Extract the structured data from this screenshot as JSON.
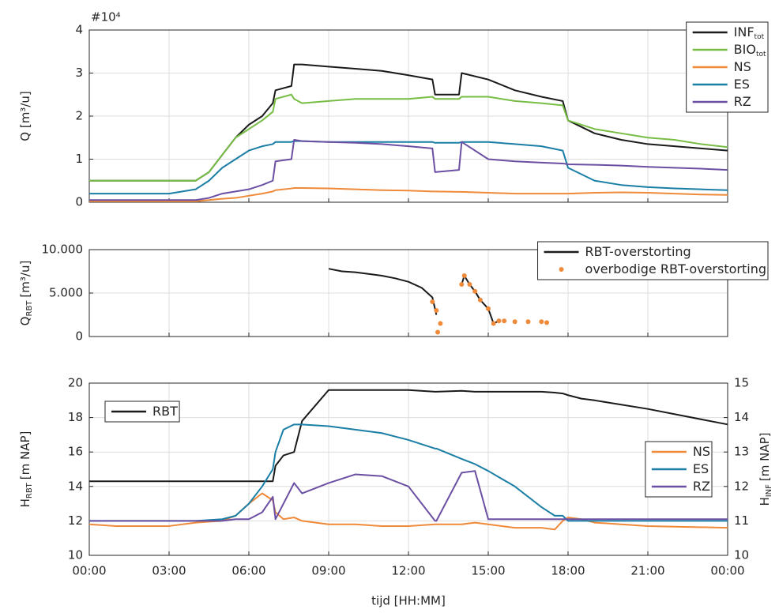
{
  "chart_data": [
    {
      "type": "line",
      "ylabel": "Q [m³/u]",
      "exponent_label": "#10⁴",
      "grid": true,
      "legend": "upper right",
      "xlim": [
        0,
        24
      ],
      "xticks": [
        0,
        3,
        6,
        9,
        12,
        15,
        18,
        21,
        24
      ],
      "ylim": [
        0,
        4
      ],
      "yticks": [
        0,
        1,
        2,
        3,
        4
      ],
      "x": [
        0,
        1,
        2,
        3,
        4,
        4.5,
        5,
        5.5,
        6,
        6.5,
        6.9,
        7,
        7.6,
        7.7,
        8,
        9,
        10,
        11,
        12,
        12.9,
        13,
        13.9,
        14,
        15,
        16,
        17,
        17.8,
        18,
        19,
        20,
        21,
        22,
        23,
        24
      ],
      "series": [
        {
          "name": "INF",
          "subscript": "tot",
          "color": "#1a1a1a",
          "values": [
            0.5,
            0.5,
            0.5,
            0.5,
            0.5,
            0.7,
            1.1,
            1.5,
            1.8,
            2.0,
            2.3,
            2.6,
            2.7,
            3.2,
            3.2,
            3.15,
            3.1,
            3.05,
            2.95,
            2.85,
            2.5,
            2.5,
            3.0,
            2.85,
            2.6,
            2.45,
            2.35,
            1.9,
            1.6,
            1.45,
            1.35,
            1.3,
            1.25,
            1.2
          ]
        },
        {
          "name": "BIO",
          "subscript": "tot",
          "color": "#77bd45",
          "values": [
            0.5,
            0.5,
            0.5,
            0.5,
            0.5,
            0.7,
            1.1,
            1.5,
            1.7,
            1.9,
            2.1,
            2.4,
            2.5,
            2.4,
            2.3,
            2.35,
            2.4,
            2.4,
            2.4,
            2.45,
            2.4,
            2.4,
            2.45,
            2.45,
            2.35,
            2.3,
            2.25,
            1.9,
            1.7,
            1.6,
            1.5,
            1.45,
            1.35,
            1.28
          ]
        },
        {
          "name": "NS",
          "color": "#ee8a3a",
          "values": [
            0.02,
            0.02,
            0.02,
            0.02,
            0.02,
            0.05,
            0.08,
            0.1,
            0.15,
            0.2,
            0.25,
            0.28,
            0.32,
            0.33,
            0.33,
            0.32,
            0.3,
            0.28,
            0.27,
            0.25,
            0.25,
            0.24,
            0.24,
            0.22,
            0.2,
            0.2,
            0.2,
            0.2,
            0.22,
            0.23,
            0.22,
            0.2,
            0.18,
            0.17
          ]
        },
        {
          "name": "ES",
          "color": "#1b7ea6",
          "values": [
            0.2,
            0.2,
            0.2,
            0.2,
            0.3,
            0.5,
            0.8,
            1.0,
            1.2,
            1.3,
            1.35,
            1.4,
            1.4,
            1.42,
            1.42,
            1.4,
            1.4,
            1.4,
            1.4,
            1.4,
            1.38,
            1.38,
            1.4,
            1.4,
            1.35,
            1.3,
            1.2,
            0.8,
            0.5,
            0.4,
            0.35,
            0.32,
            0.3,
            0.28
          ]
        },
        {
          "name": "RZ",
          "color": "#6a4fa3",
          "values": [
            0.05,
            0.05,
            0.05,
            0.05,
            0.05,
            0.1,
            0.2,
            0.25,
            0.3,
            0.4,
            0.5,
            0.95,
            1.0,
            1.45,
            1.42,
            1.4,
            1.38,
            1.35,
            1.3,
            1.25,
            0.7,
            0.75,
            1.4,
            1.0,
            0.95,
            0.92,
            0.9,
            0.88,
            0.87,
            0.85,
            0.82,
            0.8,
            0.78,
            0.75
          ]
        }
      ]
    },
    {
      "type": "line",
      "ylabel": "Q",
      "ylabel_subscript": "RBT",
      "ylabel_unit": "[m³/u]",
      "grid": true,
      "legend": "upper right",
      "xlim": [
        0,
        24
      ],
      "xticks": [
        0,
        3,
        6,
        9,
        12,
        15,
        18,
        21,
        24
      ],
      "ylim": [
        0,
        10000
      ],
      "yticks": [
        0,
        {
          "value": 5000,
          "label": "5.000"
        },
        {
          "value": 10000,
          "label": "10.000"
        }
      ],
      "x": [
        9,
        9.5,
        10,
        10.5,
        11,
        11.5,
        12,
        12.5,
        12.9,
        13.05,
        13.1,
        13.2,
        14,
        14.1,
        14.3,
        14.5,
        14.7,
        15,
        15.2,
        15.4,
        15.6,
        16,
        16.5,
        17,
        17.2
      ],
      "series": [
        {
          "name": "RBT-overstorting",
          "type": "line",
          "color": "#1a1a1a",
          "values": [
            7800,
            7500,
            7400,
            7200,
            7000,
            6700,
            6300,
            5600,
            4500,
            2500,
            null,
            null,
            6000,
            7000,
            6000,
            5200,
            4200,
            3200,
            1500,
            1800,
            null,
            null,
            null,
            null,
            null
          ]
        },
        {
          "name": "overbodige RBT-overstorting",
          "type": "scatter",
          "color": "#ee8a3a",
          "values": [
            null,
            null,
            null,
            null,
            null,
            null,
            null,
            null,
            4000,
            3000,
            500,
            1500,
            6000,
            7000,
            6000,
            5200,
            4200,
            3200,
            1500,
            1800,
            1800,
            1700,
            1700,
            1700,
            1600
          ]
        }
      ]
    },
    {
      "type": "line",
      "ylabel": "H",
      "ylabel_subscript": "RBT",
      "ylabel_unit": "[m NAP]",
      "y2label": "H",
      "y2label_subscript": "INF",
      "y2label_unit": "[m NAP]",
      "xlabel": "tijd [HH:MM]",
      "grid": true,
      "legend": "upper left",
      "y2legend": "center right",
      "xlim": [
        0,
        24
      ],
      "xticks": [
        {
          "value": 0,
          "label": "00:00"
        },
        {
          "value": 3,
          "label": "03:00"
        },
        {
          "value": 6,
          "label": "06:00"
        },
        {
          "value": 9,
          "label": "09:00"
        },
        {
          "value": 12,
          "label": "12:00"
        },
        {
          "value": 15,
          "label": "15:00"
        },
        {
          "value": 18,
          "label": "18:00"
        },
        {
          "value": 21,
          "label": "21:00"
        },
        {
          "value": 24,
          "label": "00:00"
        }
      ],
      "ylim": [
        10,
        20
      ],
      "yticks": [
        10,
        12,
        14,
        16,
        18,
        20
      ],
      "y2lim": [
        10,
        15
      ],
      "y2ticks": [
        10,
        11,
        12,
        13,
        14,
        15
      ],
      "x": [
        0,
        1,
        2,
        3,
        4,
        5,
        5.5,
        6,
        6.5,
        6.9,
        7,
        7.3,
        7.7,
        8,
        9,
        10,
        11,
        12,
        13,
        13.05,
        14,
        14.5,
        15,
        16,
        17,
        17.5,
        17.8,
        18,
        18.5,
        19,
        21,
        24
      ],
      "series": [
        {
          "name": "RBT",
          "color": "#1a1a1a",
          "values": [
            14.3,
            14.3,
            14.3,
            14.3,
            14.3,
            14.3,
            14.3,
            14.3,
            14.3,
            14.3,
            15.2,
            15.8,
            16.0,
            17.8,
            19.6,
            19.6,
            19.6,
            19.6,
            19.5,
            19.5,
            19.55,
            19.5,
            19.5,
            19.5,
            19.5,
            19.45,
            19.4,
            19.3,
            19.1,
            19.0,
            18.5,
            17.6
          ]
        },
        {
          "name": "NS",
          "color": "#ee8a3a",
          "axis": "y2",
          "values": [
            10.9,
            10.85,
            10.85,
            10.85,
            10.95,
            11,
            11.15,
            11.5,
            11.8,
            11.6,
            11.25,
            11.05,
            11.1,
            11,
            10.9,
            10.9,
            10.85,
            10.85,
            10.9,
            10.9,
            10.9,
            10.95,
            10.9,
            10.8,
            10.8,
            10.75,
            11,
            11.1,
            11.05,
            10.95,
            10.85,
            10.8
          ]
        },
        {
          "name": "ES",
          "color": "#1b7ea6",
          "axis": "y2",
          "values": [
            11,
            11,
            11,
            11,
            11,
            11.05,
            11.15,
            11.5,
            12,
            12.5,
            13,
            13.65,
            13.8,
            13.8,
            13.75,
            13.65,
            13.55,
            13.35,
            13.1,
            13.1,
            12.8,
            12.65,
            12.45,
            12,
            11.4,
            11.15,
            11.15,
            11,
            11,
            11,
            11,
            11
          ]
        },
        {
          "name": "RZ",
          "color": "#6a4fa3",
          "axis": "y2",
          "values": [
            11,
            11,
            11,
            11,
            11,
            11,
            11.05,
            11.05,
            11.25,
            11.7,
            11.05,
            11.5,
            12.1,
            11.8,
            12.1,
            12.35,
            12.3,
            12,
            11,
            11,
            12.4,
            12.45,
            11.05,
            11.05,
            11.05,
            11.05,
            11.05,
            11.05,
            11.05,
            11.05,
            11.05,
            11.05
          ]
        }
      ]
    }
  ]
}
